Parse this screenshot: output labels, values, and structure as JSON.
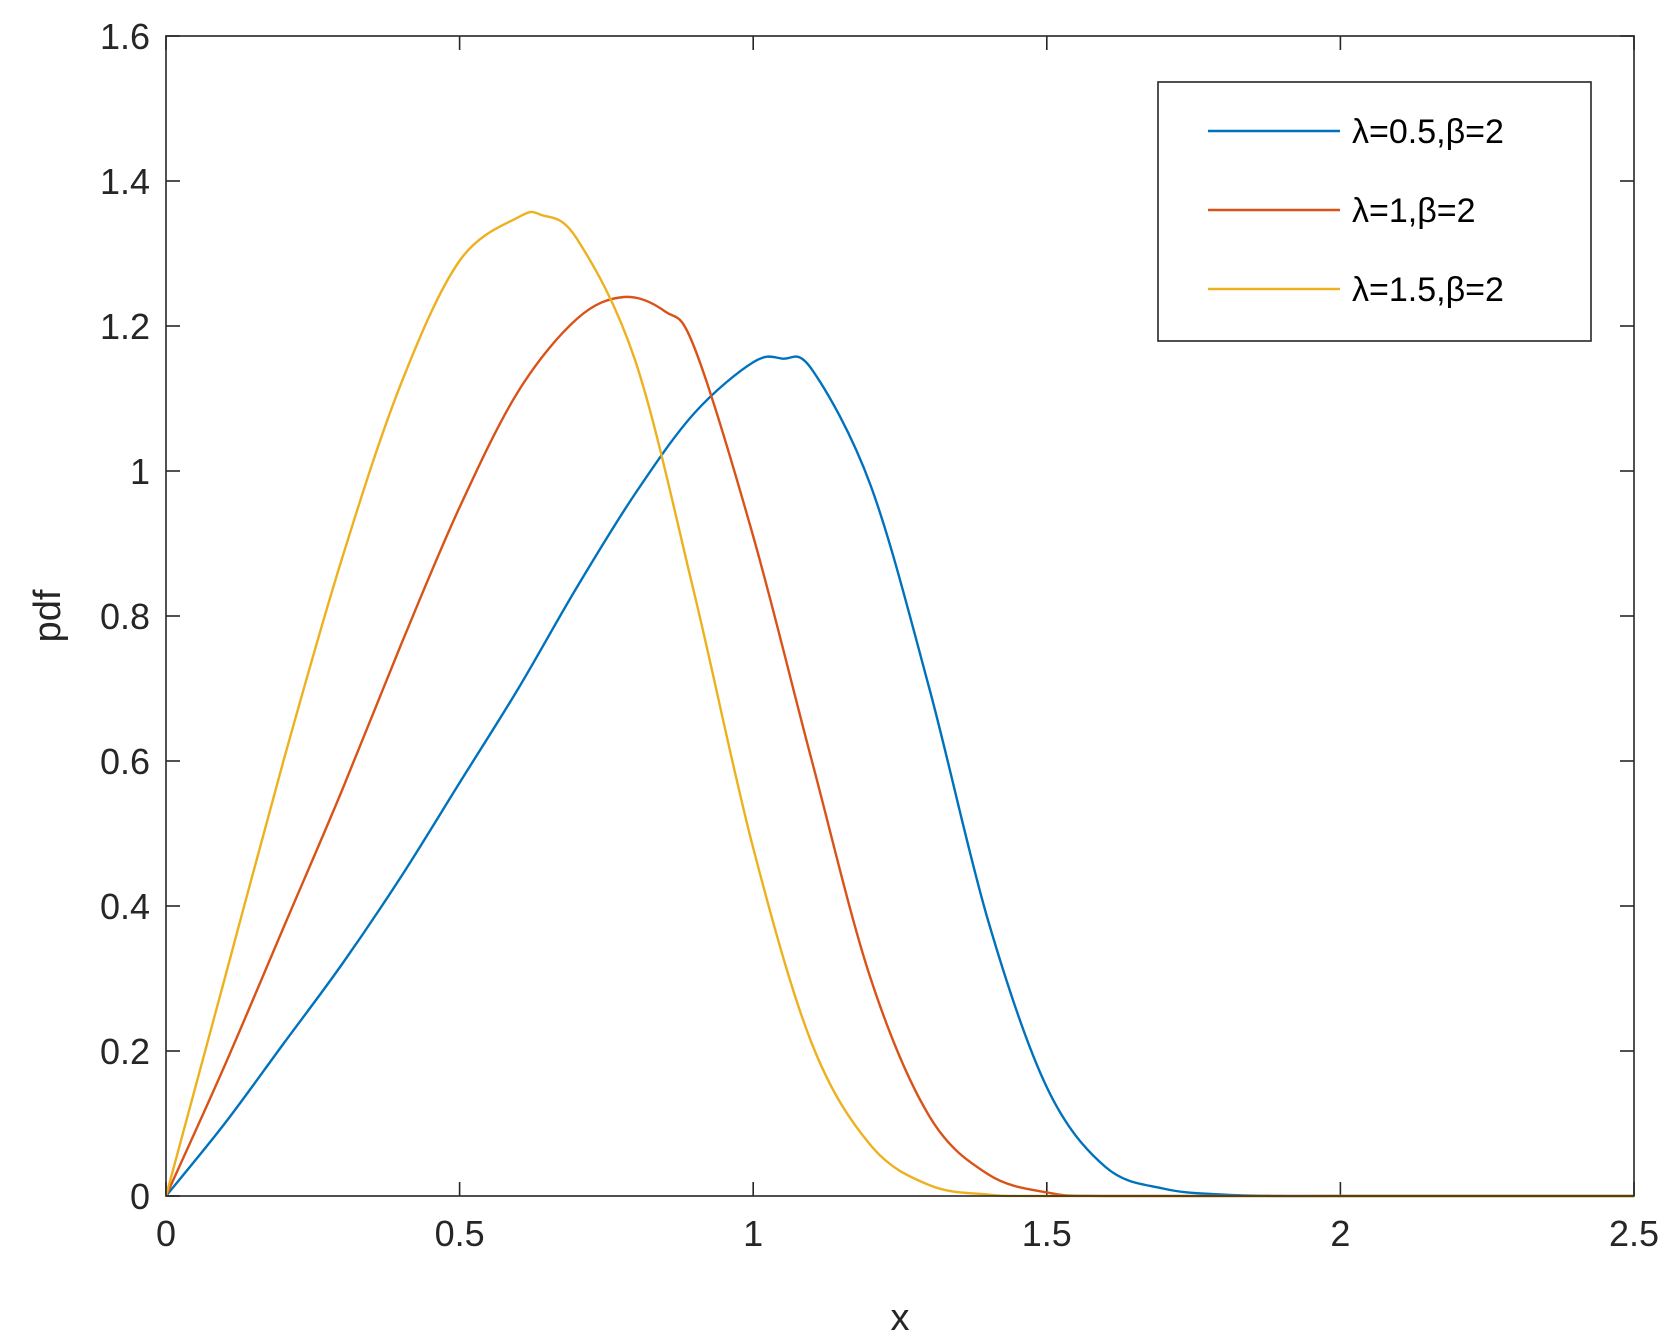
{
  "chart_data": {
    "type": "line",
    "xlabel": "x",
    "ylabel": "pdf",
    "xlim": [
      0,
      2.5
    ],
    "ylim": [
      0,
      1.6
    ],
    "xticks": [
      0,
      0.5,
      1,
      1.5,
      2,
      2.5
    ],
    "xtick_labels": [
      "0",
      "0.5",
      "1",
      "1.5",
      "2",
      "2.5"
    ],
    "yticks": [
      0,
      0.2,
      0.4,
      0.6,
      0.8,
      1,
      1.2,
      1.4,
      1.6
    ],
    "ytick_labels": [
      "0",
      "0.2",
      "0.4",
      "0.6",
      "0.8",
      "1",
      "1.2",
      "1.4",
      "1.6"
    ],
    "grid": false,
    "legend_position": "top-right",
    "series": [
      {
        "name": "λ=0.5,β=2",
        "color": "#0072BD",
        "x": [
          0,
          0.1,
          0.2,
          0.3,
          0.4,
          0.5,
          0.6,
          0.7,
          0.8,
          0.9,
          1.0,
          1.05,
          1.1,
          1.2,
          1.3,
          1.4,
          1.5,
          1.6,
          1.7,
          1.8,
          1.9,
          2.0,
          2.5
        ],
        "y": [
          0,
          0.1,
          0.21,
          0.32,
          0.44,
          0.57,
          0.7,
          0.84,
          0.97,
          1.08,
          1.15,
          1.155,
          1.14,
          0.98,
          0.7,
          0.38,
          0.15,
          0.04,
          0.01,
          0.002,
          0.0,
          0.0,
          0.0
        ]
      },
      {
        "name": "λ=1,β=2",
        "color": "#D95319",
        "x": [
          0,
          0.1,
          0.2,
          0.3,
          0.4,
          0.5,
          0.6,
          0.7,
          0.78,
          0.85,
          0.9,
          1.0,
          1.1,
          1.2,
          1.3,
          1.4,
          1.5,
          1.6,
          2.0,
          2.5
        ],
        "y": [
          0,
          0.18,
          0.37,
          0.56,
          0.76,
          0.95,
          1.11,
          1.21,
          1.24,
          1.22,
          1.17,
          0.91,
          0.6,
          0.3,
          0.11,
          0.03,
          0.005,
          0.0,
          0.0,
          0.0
        ]
      },
      {
        "name": "λ=1.5,β=2",
        "color": "#EDB120",
        "x": [
          0,
          0.1,
          0.2,
          0.3,
          0.4,
          0.5,
          0.6,
          0.64,
          0.7,
          0.8,
          0.9,
          1.0,
          1.1,
          1.2,
          1.3,
          1.4,
          1.5,
          2.0,
          2.5
        ],
        "y": [
          0,
          0.3,
          0.6,
          0.88,
          1.12,
          1.29,
          1.35,
          1.353,
          1.32,
          1.15,
          0.83,
          0.48,
          0.21,
          0.07,
          0.015,
          0.002,
          0.0,
          0.0,
          0.0
        ]
      }
    ]
  }
}
